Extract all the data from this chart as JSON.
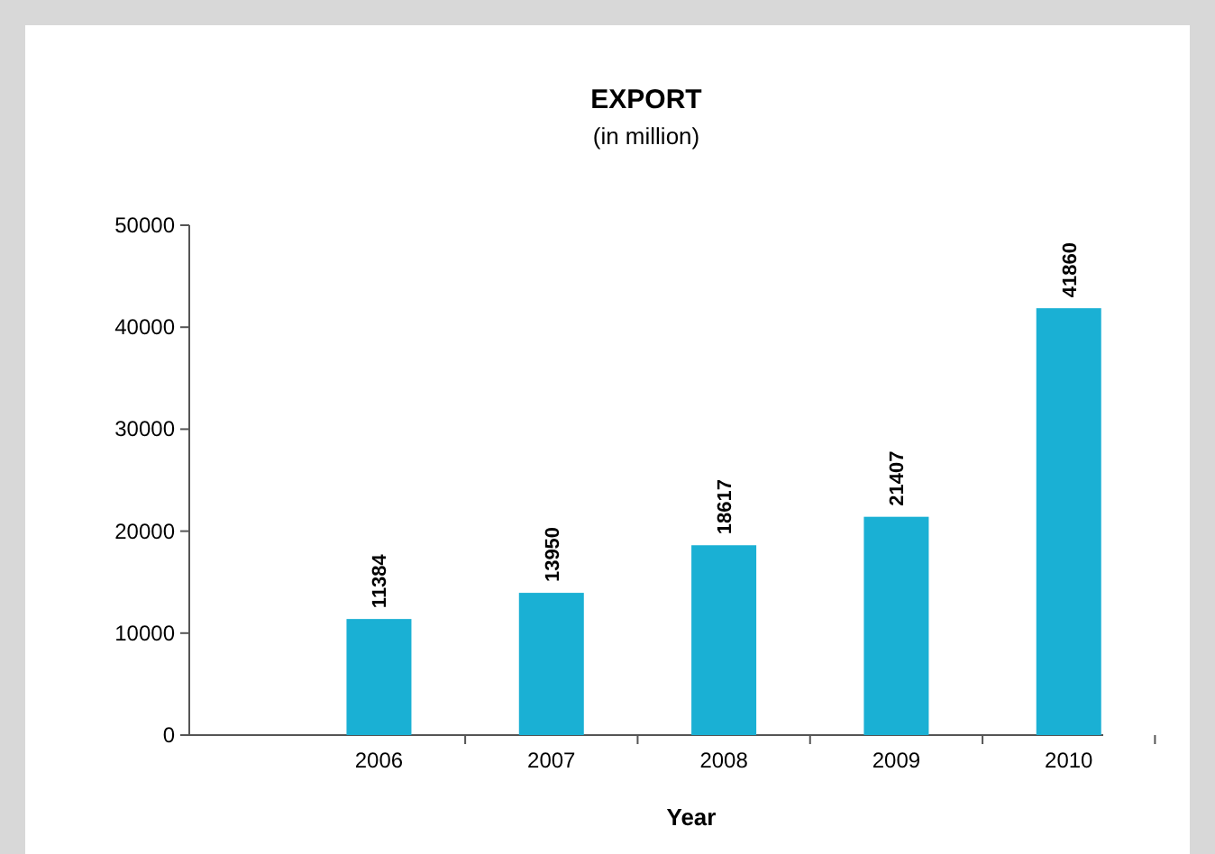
{
  "chart_data": {
    "type": "bar",
    "title": "EXPORT",
    "subtitle": "(in million)",
    "xlabel": "Year",
    "categories": [
      "2006",
      "2007",
      "2008",
      "2009",
      "2010"
    ],
    "values": [
      11384,
      13950,
      18617,
      21407,
      41860
    ],
    "color": "#1ab0d4",
    "ylim": [
      0,
      50000
    ],
    "yticks": [
      0,
      10000,
      20000,
      30000,
      40000,
      50000
    ],
    "data_labels": true
  }
}
